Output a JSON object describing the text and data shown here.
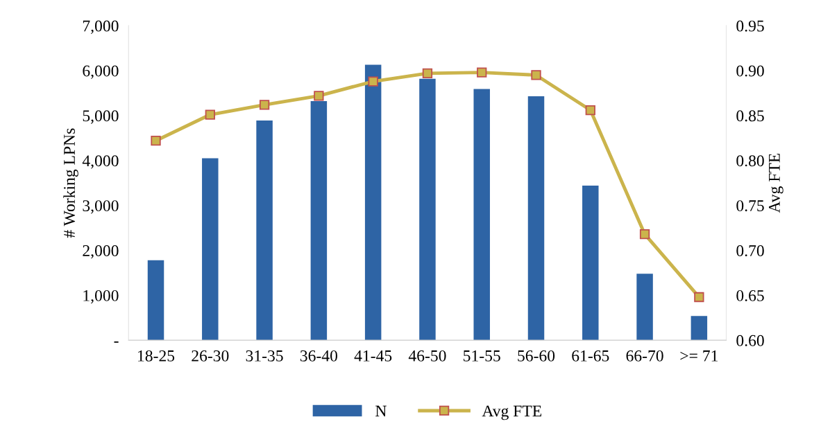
{
  "chart_data": {
    "type": "bar",
    "ylabel": "# Working LPNs",
    "y2label": "Avg FTE",
    "categories": [
      "18-25",
      "26-30",
      "31-35",
      "36-40",
      "41-45",
      "46-50",
      "51-55",
      "56-60",
      "61-65",
      "66-70",
      ">= 71"
    ],
    "series": [
      {
        "name": "N",
        "color": "#2e64a5",
        "values": [
          1780,
          4050,
          4890,
          5320,
          6130,
          5820,
          5590,
          5430,
          3440,
          1480,
          540
        ]
      },
      {
        "name": "Avg FTE",
        "type": "line",
        "axis": "y2",
        "color": "#cbb44c",
        "marker": "square",
        "values": [
          0.822,
          0.851,
          0.862,
          0.872,
          0.888,
          0.897,
          0.898,
          0.895,
          0.856,
          0.718,
          0.648
        ]
      }
    ],
    "ylim": [
      0,
      7000
    ],
    "yticks": [
      {
        "value": 0,
        "label": "-"
      },
      {
        "value": 1000,
        "label": "1,000"
      },
      {
        "value": 2000,
        "label": "2,000"
      },
      {
        "value": 3000,
        "label": "3,000"
      },
      {
        "value": 4000,
        "label": "4,000"
      },
      {
        "value": 5000,
        "label": "5,000"
      },
      {
        "value": 6000,
        "label": "6,000"
      },
      {
        "value": 7000,
        "label": "7,000"
      }
    ],
    "y2lim": [
      0.6,
      0.95
    ],
    "y2ticks": [
      {
        "value": 0.6,
        "label": "0.60"
      },
      {
        "value": 0.65,
        "label": "0.65"
      },
      {
        "value": 0.7,
        "label": "0.70"
      },
      {
        "value": 0.75,
        "label": "0.75"
      },
      {
        "value": 0.8,
        "label": "0.80"
      },
      {
        "value": 0.85,
        "label": "0.85"
      },
      {
        "value": 0.9,
        "label": "0.90"
      },
      {
        "value": 0.95,
        "label": "0.95"
      }
    ],
    "grid": false,
    "legend": "bottom"
  }
}
